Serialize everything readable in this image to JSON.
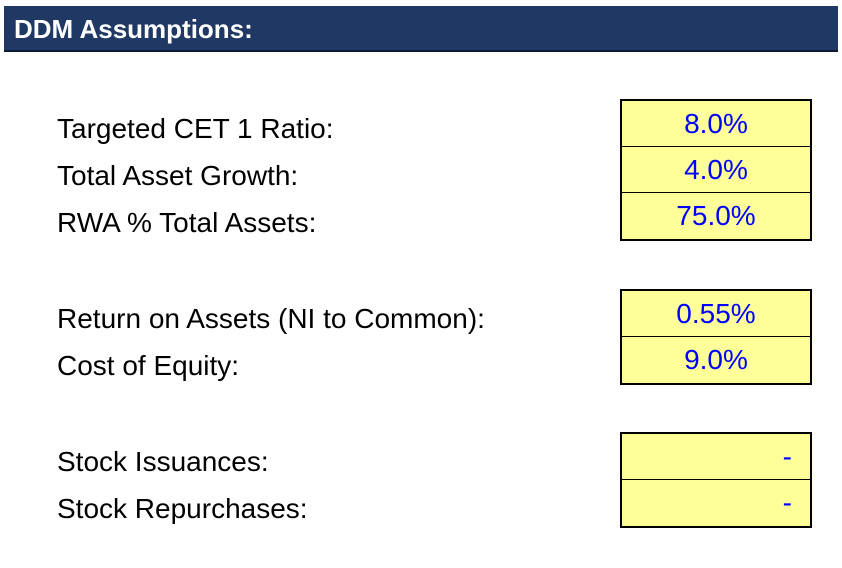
{
  "header": {
    "title": "DDM Assumptions:",
    "background_color": "#1f3864",
    "text_color": "#ffffff"
  },
  "input_cell_color": "#ffff99",
  "input_value_color": "#0000ff",
  "groups": [
    {
      "rows": [
        {
          "label": "Targeted CET 1 Ratio:",
          "value": "8.0%"
        },
        {
          "label": "Total Asset Growth:",
          "value": "4.0%"
        },
        {
          "label": "RWA % Total Assets:",
          "value": "75.0%"
        }
      ]
    },
    {
      "rows": [
        {
          "label": "Return on Assets (NI to Common):",
          "value": "0.55%"
        },
        {
          "label": "Cost of Equity:",
          "value": "9.0%"
        }
      ]
    },
    {
      "rows": [
        {
          "label": "Stock Issuances:",
          "value": "-"
        },
        {
          "label": "Stock Repurchases:",
          "value": "-"
        }
      ]
    }
  ]
}
